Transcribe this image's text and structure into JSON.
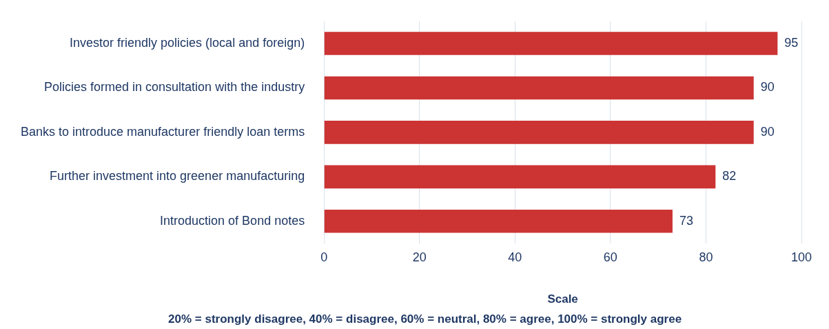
{
  "chart_data": {
    "type": "bar",
    "orientation": "horizontal",
    "categories": [
      "Investor friendly policies (local and foreign)",
      "Policies formed in consultation with the industry",
      "Banks to introduce manufacturer friendly loan terms",
      "Further investment into greener manufacturing",
      "Introduction of Bond notes"
    ],
    "values": [
      95,
      90,
      90,
      82,
      73
    ],
    "color": "#cc3333",
    "xlim": [
      0,
      100
    ],
    "xticks": [
      0,
      20,
      40,
      60,
      80,
      100
    ],
    "grid": "x",
    "data_labels": true,
    "xlabel": "Scale",
    "annotations": [
      "20% = strongly disagree, 40% = disagree, 60% = neutral, 80% = agree, 100% = strongly agree"
    ]
  }
}
